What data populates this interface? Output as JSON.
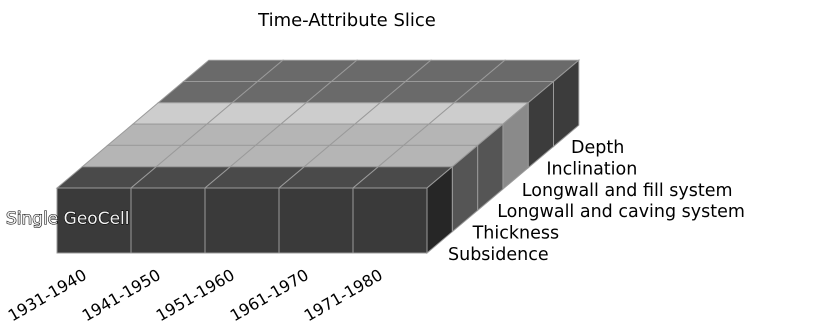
{
  "title": "Time-Attribute Slice",
  "cell_label": "Single GeoCell",
  "time_periods": [
    "1931-1940",
    "1941-1950",
    "1951-1960",
    "1961-1970",
    "1971-1980"
  ],
  "attributes": [
    "Subsidence",
    "Thickness",
    "Longwall and caving system",
    "Longwall and fill system",
    "Inclination",
    "Depth"
  ],
  "highlighted_attribute": "Longwall and fill system",
  "colors": {
    "cube_front": "#3a3a3a",
    "cube_right": "#262626",
    "top_dark": "#4a4a4a",
    "top_mid": "#6a6a6a",
    "top_light": "#b5b5b5",
    "top_highlight": "#cdcdcd"
  }
}
